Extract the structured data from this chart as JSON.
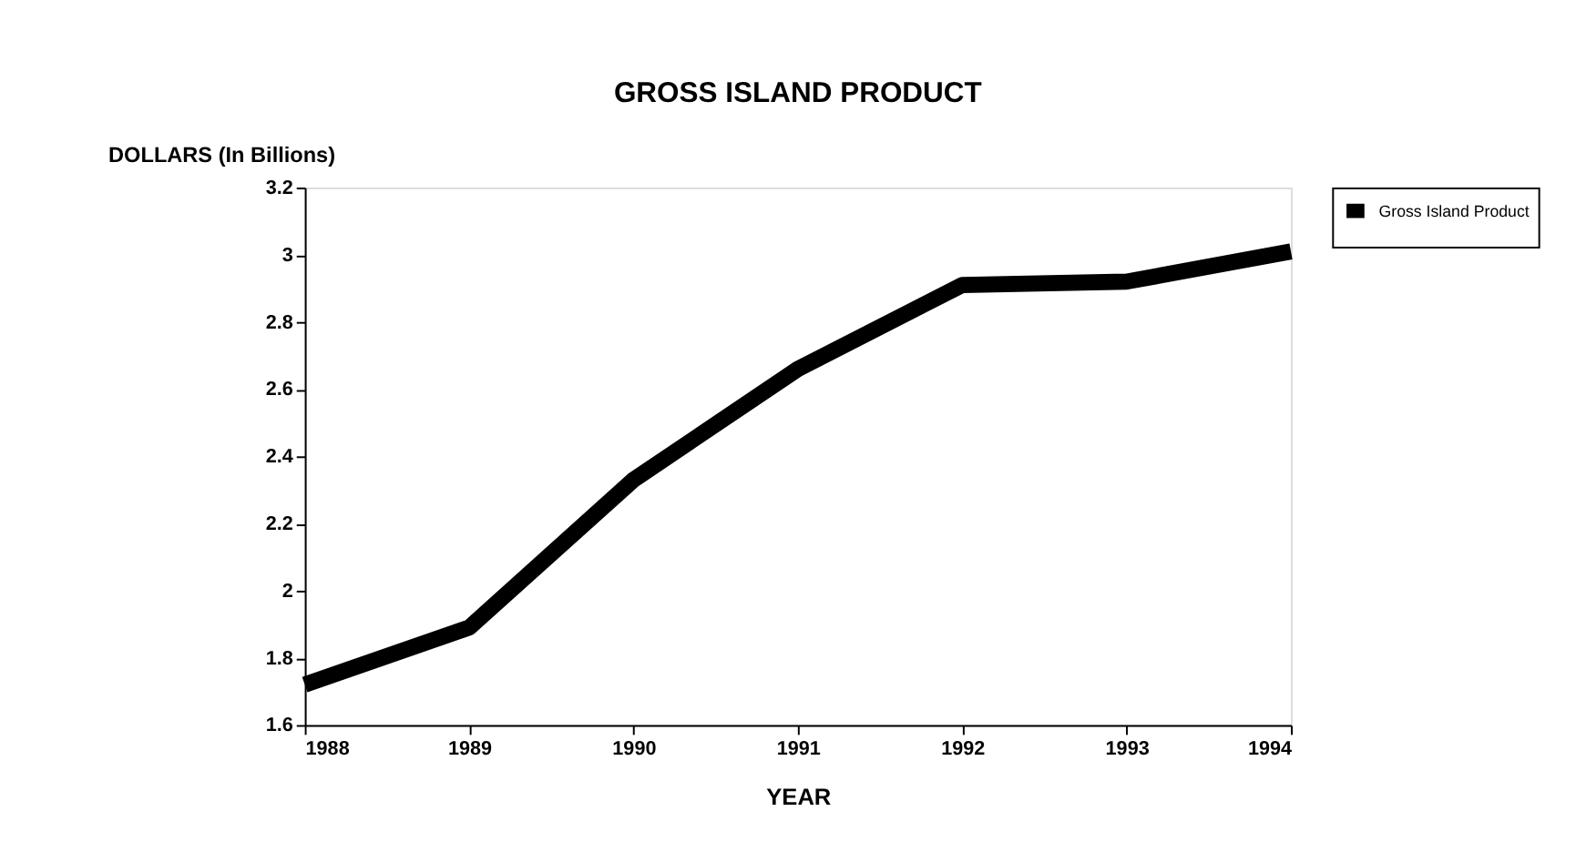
{
  "chart_data": {
    "type": "line",
    "title": "GROSS ISLAND PRODUCT",
    "ylabel": "DOLLARS (In Billions)",
    "xlabel": "YEAR",
    "x": [
      1988,
      1989,
      1990,
      1991,
      1992,
      1993,
      1994
    ],
    "series": [
      {
        "name": "Gross Island Product",
        "color": "#000000",
        "values": [
          1.72,
          1.89,
          2.33,
          2.66,
          2.91,
          2.92,
          3.01
        ]
      }
    ],
    "xlim": [
      1988,
      1994
    ],
    "xticks": [
      1988,
      1989,
      1990,
      1991,
      1992,
      1993,
      1994
    ],
    "ylim": [
      1.6,
      3.2
    ],
    "yticks": [
      1.6,
      1.8,
      2,
      2.2,
      2.4,
      2.6,
      2.8,
      3,
      3.2
    ],
    "grid": false,
    "legend": "top right",
    "marker": "none",
    "line_style": "solid"
  }
}
